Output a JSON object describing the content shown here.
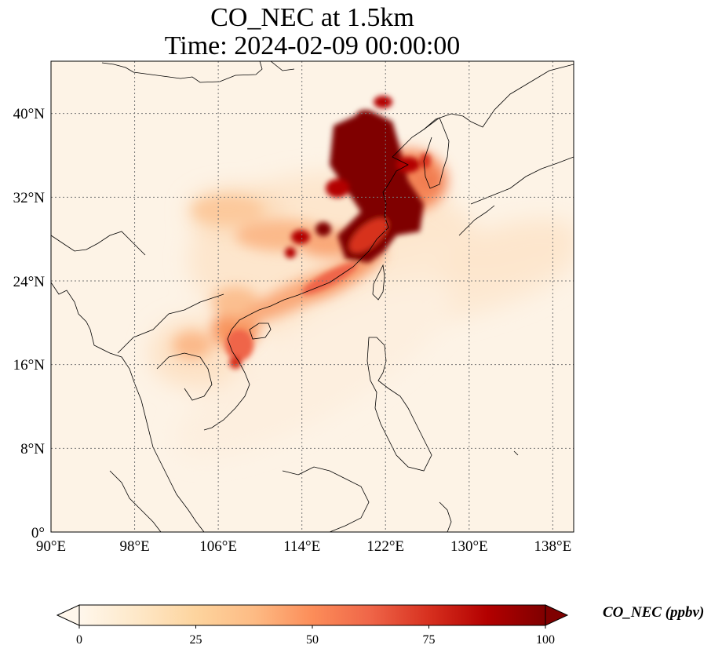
{
  "title": {
    "line1": "CO_NEC at 1.5km",
    "line2": "Time: 2024-02-09 00:00:00"
  },
  "map": {
    "projection": "PlateCarree",
    "lon_range": [
      90,
      140
    ],
    "lat_range": [
      0,
      45
    ],
    "gridlines": "dotted",
    "x_ticks": [
      "90°E",
      "98°E",
      "106°E",
      "114°E",
      "122°E",
      "130°E",
      "138°E"
    ],
    "y_ticks": [
      "0°",
      "8°N",
      "16°N",
      "24°N",
      "32°N",
      "40°N"
    ]
  },
  "colorbar": {
    "label": "CO_NEC (ppbv)",
    "colormap": "OrRd",
    "min": 0,
    "max": 100,
    "ticks": [
      "0",
      "25",
      "50",
      "75",
      "100"
    ],
    "extend": "both",
    "colors": [
      "#fff7ec",
      "#fee8c8",
      "#fdd49e",
      "#fdbb84",
      "#fc8d59",
      "#ef6548",
      "#d7301f",
      "#b30000",
      "#7f0000"
    ]
  }
}
